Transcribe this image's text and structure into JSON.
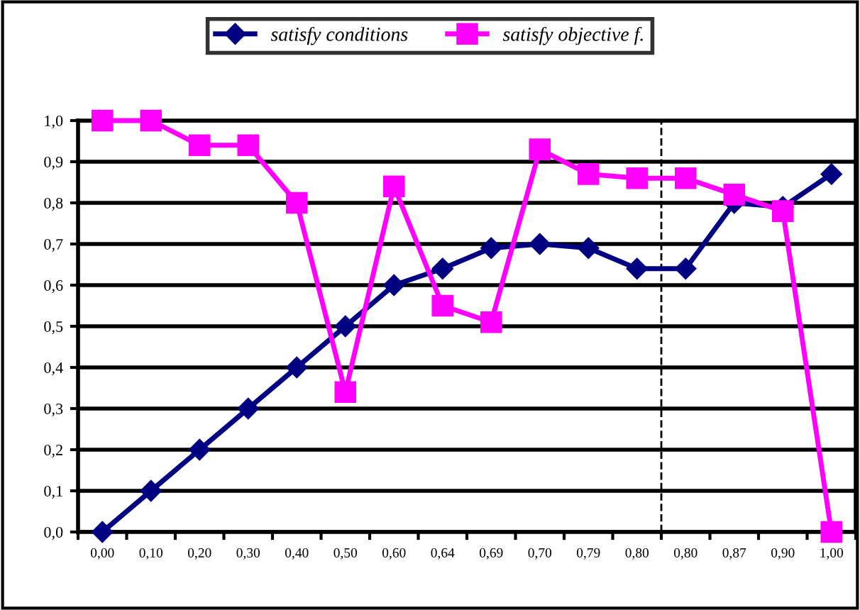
{
  "chart_data": {
    "type": "line",
    "categories": [
      "0,00",
      "0,10",
      "0,20",
      "0,30",
      "0,40",
      "0,50",
      "0,60",
      "0,64",
      "0,69",
      "0,70",
      "0,79",
      "0,80",
      "0,80",
      "0,87",
      "0,90",
      "1,00"
    ],
    "series": [
      {
        "name": "satisfy conditions",
        "color": "#000080",
        "marker": "diamond",
        "values": [
          0.0,
          0.1,
          0.2,
          0.3,
          0.4,
          0.5,
          0.6,
          0.64,
          0.69,
          0.7,
          0.69,
          0.64,
          0.64,
          0.8,
          0.79,
          0.87
        ]
      },
      {
        "name": "satisfy objective f.",
        "color": "#ff00ff",
        "marker": "square",
        "values": [
          1.0,
          1.0,
          0.94,
          0.94,
          0.8,
          0.34,
          0.84,
          0.55,
          0.51,
          0.93,
          0.87,
          0.86,
          0.86,
          0.82,
          0.78,
          0.0
        ]
      }
    ],
    "ylim": [
      0,
      1
    ],
    "yticks": [
      {
        "value": 0,
        "label": "0,0"
      },
      {
        "value": 0.1,
        "label": "0,1"
      },
      {
        "value": 0.2,
        "label": "0,2"
      },
      {
        "value": 0.3,
        "label": "0,3"
      },
      {
        "value": 0.4,
        "label": "0,4"
      },
      {
        "value": 0.5,
        "label": "0,5"
      },
      {
        "value": 0.6,
        "label": "0,6"
      },
      {
        "value": 0.7,
        "label": "0,7"
      },
      {
        "value": 0.8,
        "label": "0,8"
      },
      {
        "value": 0.9,
        "label": "0,9"
      },
      {
        "value": 1,
        "label": "1,0"
      }
    ],
    "grid": "y",
    "legend": "top",
    "line_style": "solid",
    "ref_lines": [
      {
        "axis": "x",
        "value": "0,80",
        "line_style": "dashed",
        "color": "#000000"
      }
    ]
  }
}
